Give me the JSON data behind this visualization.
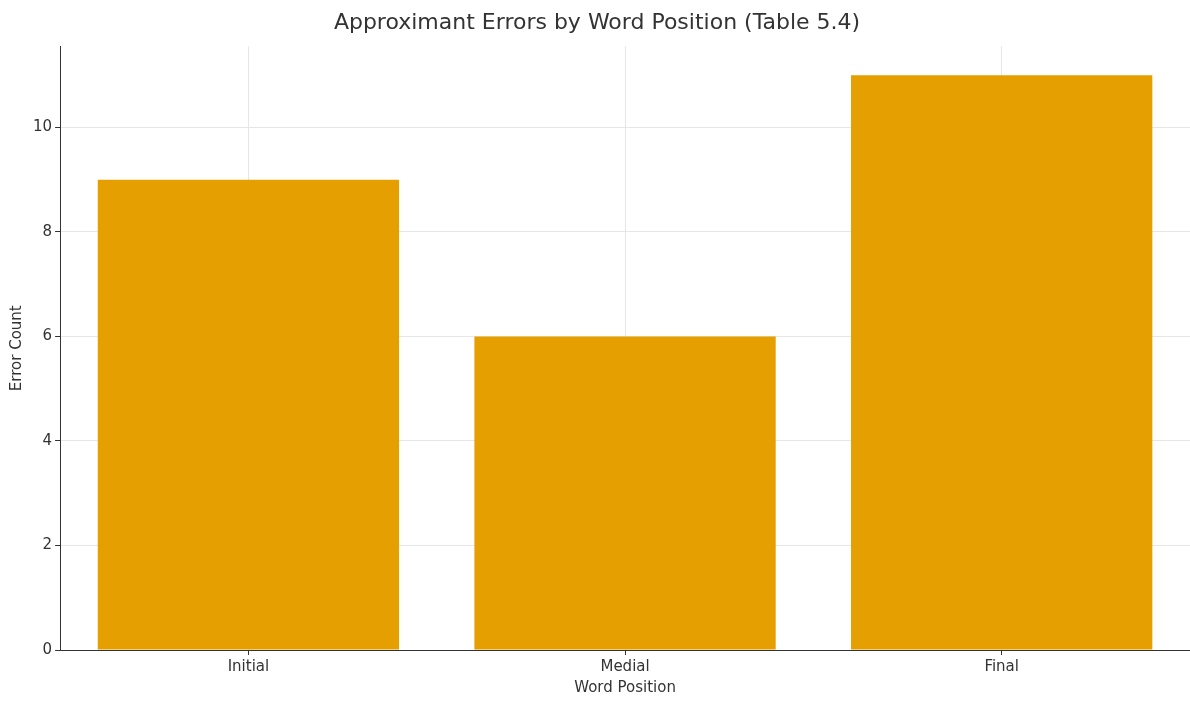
{
  "chart_data": {
    "type": "bar",
    "title": "Approximant Errors by Word Position (Table 5.4)",
    "xlabel": "Word Position",
    "ylabel": "Error Count",
    "categories": [
      "Initial",
      "Medial",
      "Final"
    ],
    "values": [
      9,
      6,
      11
    ],
    "color": "#e69f00",
    "ylim": [
      0,
      11.55
    ],
    "yticks": [
      0,
      2,
      4,
      6,
      8,
      10
    ],
    "grid": true
  }
}
